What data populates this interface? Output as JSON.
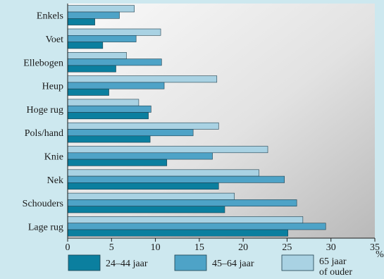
{
  "chart_data": {
    "type": "bar",
    "orientation": "horizontal",
    "categories": [
      "Enkels",
      "Voet",
      "Ellebogen",
      "Heup",
      "Hoge rug",
      "Pols/hand",
      "Knie",
      "Nek",
      "Schouders",
      "Lage rug"
    ],
    "series": [
      {
        "name": "65 jaar of ouder",
        "color": "#a9d2e3",
        "values": [
          7.6,
          10.6,
          6.7,
          17.0,
          8.1,
          17.2,
          22.8,
          21.8,
          19.0,
          26.8
        ]
      },
      {
        "name": "45–64 jaar",
        "color": "#4ea3c7",
        "values": [
          5.9,
          7.8,
          10.7,
          11.0,
          9.5,
          14.3,
          16.5,
          24.7,
          26.1,
          29.4
        ]
      },
      {
        "name": "24–44 jaar",
        "color": "#0b7f9f",
        "values": [
          3.1,
          4.0,
          5.5,
          4.7,
          9.2,
          9.4,
          11.3,
          17.2,
          17.9,
          25.1
        ]
      }
    ],
    "xlim": [
      0,
      35
    ],
    "x_ticks": [
      "0",
      "5",
      "10",
      "15",
      "20",
      "25",
      "30",
      "35"
    ],
    "unit": "%",
    "legend": [
      {
        "label": "24–44 jaar",
        "color": "#0b7f9f"
      },
      {
        "label": "45–64 jaar",
        "color": "#4ea3c7"
      },
      {
        "label_line1": "65 jaar",
        "label_line2": "of ouder",
        "color": "#a9d2e3"
      }
    ],
    "legend_placement": "bottom",
    "grid": false
  }
}
